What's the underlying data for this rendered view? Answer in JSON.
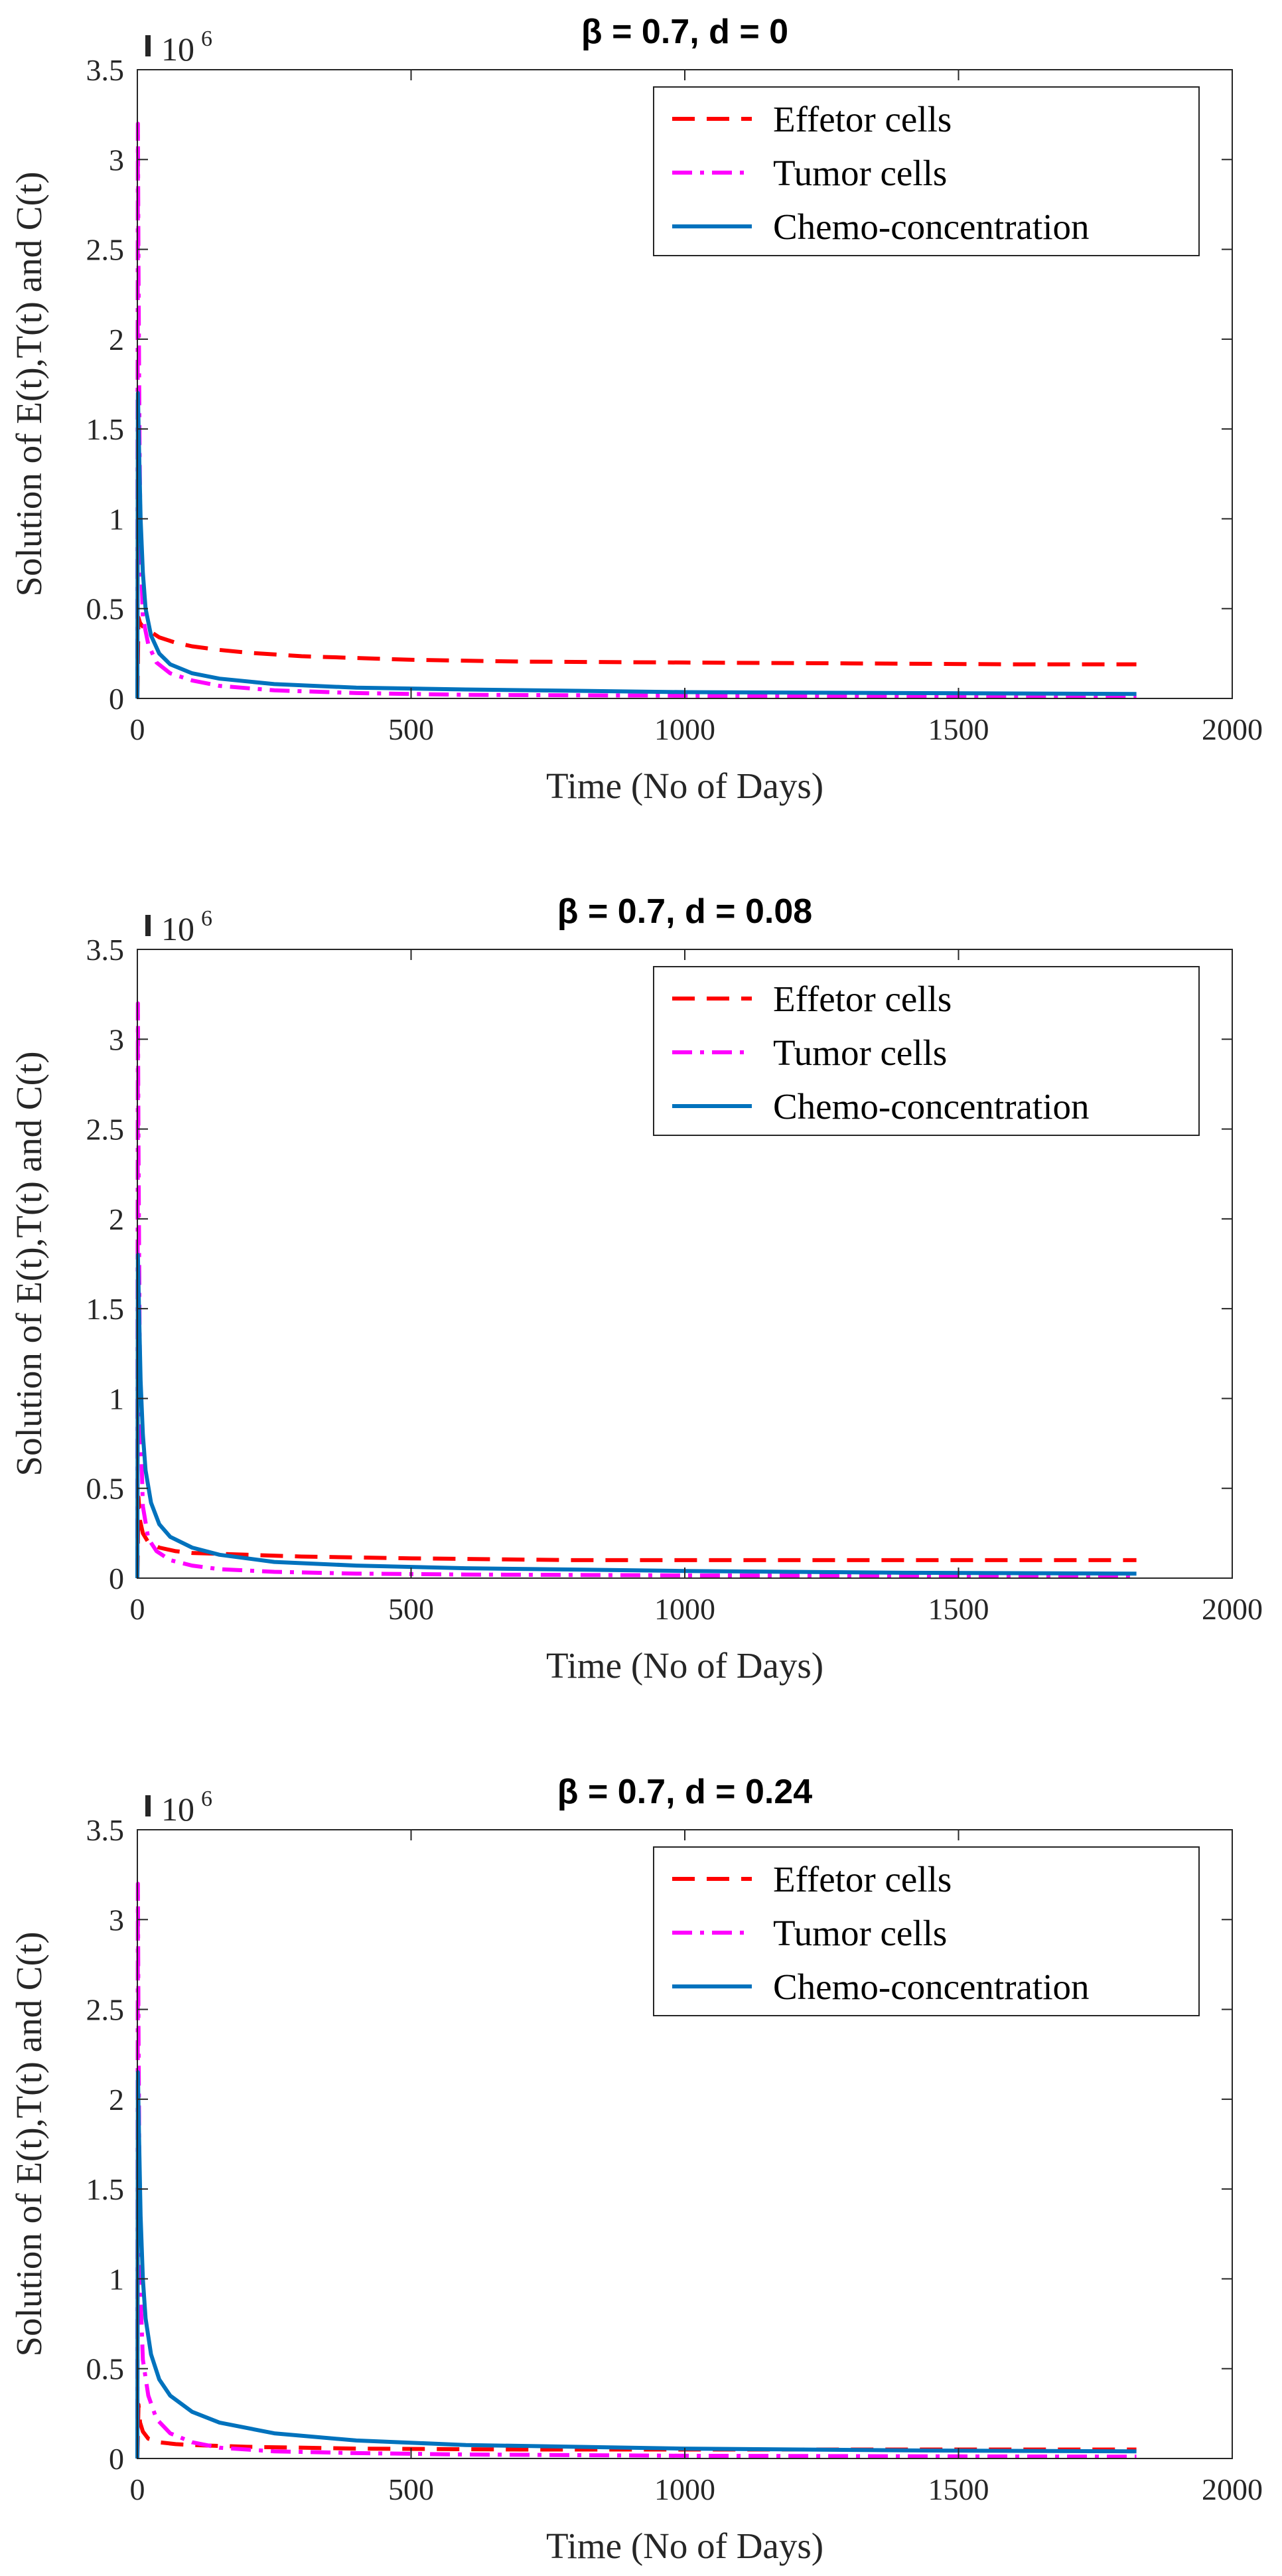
{
  "colors": {
    "effector": "#ff0000",
    "tumor": "#ff00ff",
    "chemo": "#0072bd",
    "axis": "#262626",
    "frame": "#262626"
  },
  "chart_data": [
    {
      "type": "line",
      "title": "β = 0.7, d = 0",
      "xlabel": "Time (No of Days)",
      "ylabel": "Solution of E(t),T(t) and C(t)",
      "y_exponent_label": "10",
      "y_exponent_power": "6",
      "xlim": [
        0,
        2000
      ],
      "ylim": [
        0,
        3.5
      ],
      "y_scale": 1000000,
      "xticks": [
        0,
        500,
        1000,
        1500,
        2000
      ],
      "yticks": [
        0,
        0.5,
        1,
        1.5,
        2,
        2.5,
        3,
        3.5
      ],
      "x_tick_labels": [
        "0",
        "500",
        "1000",
        "1500",
        "2000"
      ],
      "y_tick_labels": [
        "0",
        "0.5",
        "1",
        "1.5",
        "2",
        "2.5",
        "3",
        "3.5"
      ],
      "legend_position": "top-right",
      "series": [
        {
          "name": "Effetor cells",
          "style": "dashed",
          "color": "#ff0000",
          "points": [
            [
              0,
              0
            ],
            [
              2,
              0.45
            ],
            [
              5,
              0.42
            ],
            [
              10,
              0.4
            ],
            [
              20,
              0.38
            ],
            [
              40,
              0.34
            ],
            [
              70,
              0.31
            ],
            [
              100,
              0.29
            ],
            [
              150,
              0.27
            ],
            [
              200,
              0.255
            ],
            [
              300,
              0.235
            ],
            [
              400,
              0.225
            ],
            [
              500,
              0.215
            ],
            [
              700,
              0.205
            ],
            [
              1000,
              0.2
            ],
            [
              1300,
              0.195
            ],
            [
              1600,
              0.19
            ],
            [
              1825,
              0.19
            ]
          ]
        },
        {
          "name": "Tumor cells",
          "style": "dashdot",
          "color": "#ff00ff",
          "points": [
            [
              0,
              0
            ],
            [
              1,
              3.2
            ],
            [
              2,
              2.4
            ],
            [
              4,
              1.4
            ],
            [
              6,
              0.85
            ],
            [
              10,
              0.45
            ],
            [
              20,
              0.3
            ],
            [
              35,
              0.2
            ],
            [
              60,
              0.14
            ],
            [
              100,
              0.1
            ],
            [
              150,
              0.07
            ],
            [
              250,
              0.045
            ],
            [
              400,
              0.03
            ],
            [
              600,
              0.02
            ],
            [
              1000,
              0.015
            ],
            [
              1500,
              0.012
            ],
            [
              1825,
              0.01
            ]
          ]
        },
        {
          "name": "Chemo-concentration",
          "style": "solid",
          "color": "#0072bd",
          "points": [
            [
              0,
              0
            ],
            [
              1,
              1.7
            ],
            [
              3,
              1.4
            ],
            [
              6,
              1.0
            ],
            [
              10,
              0.7
            ],
            [
              15,
              0.5
            ],
            [
              25,
              0.35
            ],
            [
              40,
              0.25
            ],
            [
              60,
              0.19
            ],
            [
              100,
              0.14
            ],
            [
              150,
              0.11
            ],
            [
              250,
              0.08
            ],
            [
              400,
              0.06
            ],
            [
              600,
              0.05
            ],
            [
              1000,
              0.035
            ],
            [
              1400,
              0.03
            ],
            [
              1825,
              0.025
            ]
          ]
        }
      ]
    },
    {
      "type": "line",
      "title": "β = 0.7, d = 0.08",
      "xlabel": "Time (No of Days)",
      "ylabel": "Solution of E(t),T(t) and C(t)",
      "y_exponent_label": "10",
      "y_exponent_power": "6",
      "xlim": [
        0,
        2000
      ],
      "ylim": [
        0,
        3.5
      ],
      "y_scale": 1000000,
      "xticks": [
        0,
        500,
        1000,
        1500,
        2000
      ],
      "yticks": [
        0,
        0.5,
        1,
        1.5,
        2,
        2.5,
        3,
        3.5
      ],
      "x_tick_labels": [
        "0",
        "500",
        "1000",
        "1500",
        "2000"
      ],
      "y_tick_labels": [
        "0",
        "0.5",
        "1",
        "1.5",
        "2",
        "2.5",
        "3",
        "3.5"
      ],
      "legend_position": "top-right",
      "series": [
        {
          "name": "Effetor cells",
          "style": "dashed",
          "color": "#ff0000",
          "points": [
            [
              0,
              0
            ],
            [
              2,
              0.45
            ],
            [
              5,
              0.32
            ],
            [
              10,
              0.25
            ],
            [
              20,
              0.2
            ],
            [
              40,
              0.17
            ],
            [
              70,
              0.15
            ],
            [
              100,
              0.14
            ],
            [
              200,
              0.13
            ],
            [
              300,
              0.12
            ],
            [
              500,
              0.11
            ],
            [
              800,
              0.1
            ],
            [
              1200,
              0.1
            ],
            [
              1825,
              0.1
            ]
          ]
        },
        {
          "name": "Tumor cells",
          "style": "dashdot",
          "color": "#ff00ff",
          "points": [
            [
              0,
              0
            ],
            [
              1,
              3.2
            ],
            [
              2,
              2.4
            ],
            [
              4,
              1.4
            ],
            [
              6,
              0.85
            ],
            [
              10,
              0.4
            ],
            [
              20,
              0.22
            ],
            [
              35,
              0.15
            ],
            [
              60,
              0.1
            ],
            [
              100,
              0.07
            ],
            [
              150,
              0.05
            ],
            [
              250,
              0.035
            ],
            [
              400,
              0.025
            ],
            [
              600,
              0.02
            ],
            [
              1000,
              0.015
            ],
            [
              1500,
              0.012
            ],
            [
              1825,
              0.01
            ]
          ]
        },
        {
          "name": "Chemo-concentration",
          "style": "solid",
          "color": "#0072bd",
          "points": [
            [
              0,
              0
            ],
            [
              1,
              1.8
            ],
            [
              3,
              1.5
            ],
            [
              6,
              1.1
            ],
            [
              10,
              0.8
            ],
            [
              15,
              0.6
            ],
            [
              25,
              0.42
            ],
            [
              40,
              0.3
            ],
            [
              60,
              0.23
            ],
            [
              100,
              0.17
            ],
            [
              150,
              0.13
            ],
            [
              250,
              0.09
            ],
            [
              400,
              0.07
            ],
            [
              600,
              0.055
            ],
            [
              1000,
              0.04
            ],
            [
              1400,
              0.03
            ],
            [
              1825,
              0.025
            ]
          ]
        }
      ]
    },
    {
      "type": "line",
      "title": "β = 0.7, d = 0.24",
      "xlabel": "Time (No of Days)",
      "ylabel": "Solution of E(t),T(t) and C(t)",
      "y_exponent_label": "10",
      "y_exponent_power": "6",
      "xlim": [
        0,
        2000
      ],
      "ylim": [
        0,
        3.5
      ],
      "y_scale": 1000000,
      "xticks": [
        0,
        500,
        1000,
        1500,
        2000
      ],
      "yticks": [
        0,
        0.5,
        1,
        1.5,
        2,
        2.5,
        3,
        3.5
      ],
      "x_tick_labels": [
        "0",
        "500",
        "1000",
        "1500",
        "2000"
      ],
      "y_tick_labels": [
        "0",
        "0.5",
        "1",
        "1.5",
        "2",
        "2.5",
        "3",
        "3.5"
      ],
      "legend_position": "top-right",
      "series": [
        {
          "name": "Effetor cells",
          "style": "dashed",
          "color": "#ff0000",
          "points": [
            [
              0,
              0
            ],
            [
              2,
              0.3
            ],
            [
              5,
              0.2
            ],
            [
              10,
              0.15
            ],
            [
              20,
              0.11
            ],
            [
              40,
              0.09
            ],
            [
              70,
              0.08
            ],
            [
              100,
              0.075
            ],
            [
              200,
              0.065
            ],
            [
              400,
              0.055
            ],
            [
              700,
              0.05
            ],
            [
              1000,
              0.05
            ],
            [
              1400,
              0.05
            ],
            [
              1825,
              0.05
            ]
          ]
        },
        {
          "name": "Tumor cells",
          "style": "dashdot",
          "color": "#ff00ff",
          "points": [
            [
              0,
              0
            ],
            [
              1,
              3.2
            ],
            [
              2,
              2.4
            ],
            [
              4,
              1.4
            ],
            [
              6,
              0.9
            ],
            [
              10,
              0.55
            ],
            [
              20,
              0.35
            ],
            [
              35,
              0.22
            ],
            [
              60,
              0.14
            ],
            [
              100,
              0.09
            ],
            [
              150,
              0.06
            ],
            [
              250,
              0.04
            ],
            [
              400,
              0.03
            ],
            [
              600,
              0.022
            ],
            [
              1000,
              0.015
            ],
            [
              1500,
              0.012
            ],
            [
              1825,
              0.01
            ]
          ]
        },
        {
          "name": "Chemo-concentration",
          "style": "solid",
          "color": "#0072bd",
          "points": [
            [
              0,
              0
            ],
            [
              1,
              2.15
            ],
            [
              3,
              1.8
            ],
            [
              6,
              1.35
            ],
            [
              10,
              1.0
            ],
            [
              15,
              0.78
            ],
            [
              25,
              0.58
            ],
            [
              40,
              0.44
            ],
            [
              60,
              0.35
            ],
            [
              100,
              0.26
            ],
            [
              150,
              0.2
            ],
            [
              250,
              0.14
            ],
            [
              400,
              0.1
            ],
            [
              600,
              0.075
            ],
            [
              1000,
              0.055
            ],
            [
              1400,
              0.045
            ],
            [
              1825,
              0.04
            ]
          ]
        }
      ]
    }
  ]
}
